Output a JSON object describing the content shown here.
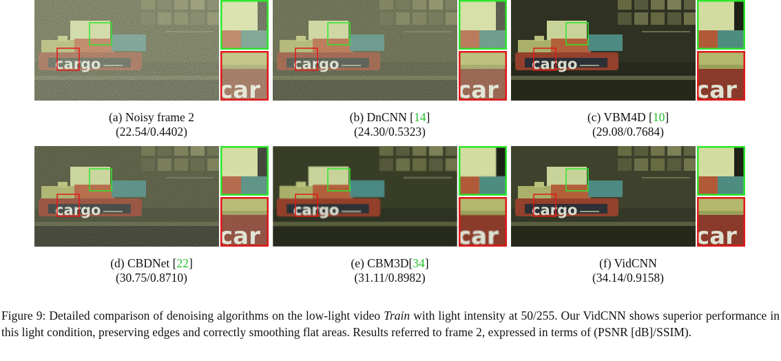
{
  "panels": [
    {
      "label": "(a) Noisy frame 2",
      "cite": "",
      "metrics": "(22.54/0.4402)",
      "variant": "noisy"
    },
    {
      "label": "(b) DnCNN [",
      "cite": "14",
      "cite_close": "]",
      "metrics": "(24.30/0.5323)",
      "variant": "noisy-mid"
    },
    {
      "label": "(c) VBM4D [",
      "cite": "10",
      "cite_close": "]",
      "metrics": "(29.08/0.7684)",
      "variant": "smooth-dark"
    },
    {
      "label": "(d) CBDNet [",
      "cite": "22",
      "cite_close": "]",
      "metrics": "(30.75/0.8710)",
      "variant": "light-grain"
    },
    {
      "label": "(e) CBM3D[",
      "cite": "34",
      "cite_close": "]",
      "metrics": "(31.11/0.8982)",
      "variant": "smooth"
    },
    {
      "label": "(f) VidCNN",
      "cite": "",
      "metrics": "(34.14/0.9158)",
      "variant": "clean"
    }
  ],
  "scene_text": {
    "big": "cargo",
    "zoom": "car"
  },
  "colors": {
    "green_box": "#2ee62e",
    "red_box": "#e01818",
    "cite": "#22c02a"
  },
  "caption": {
    "part1": "Figure 9: Detailed comparison of denoising algorithms on the low-light video ",
    "italic": "Train",
    "part2": " with light intensity at 50/255. Our VidCNN shows superior performance in this light condition, preserving edges and correctly smoothing flat areas. Results referred to frame 2, expressed in terms of (PSNR [dB]/SSIM)."
  }
}
